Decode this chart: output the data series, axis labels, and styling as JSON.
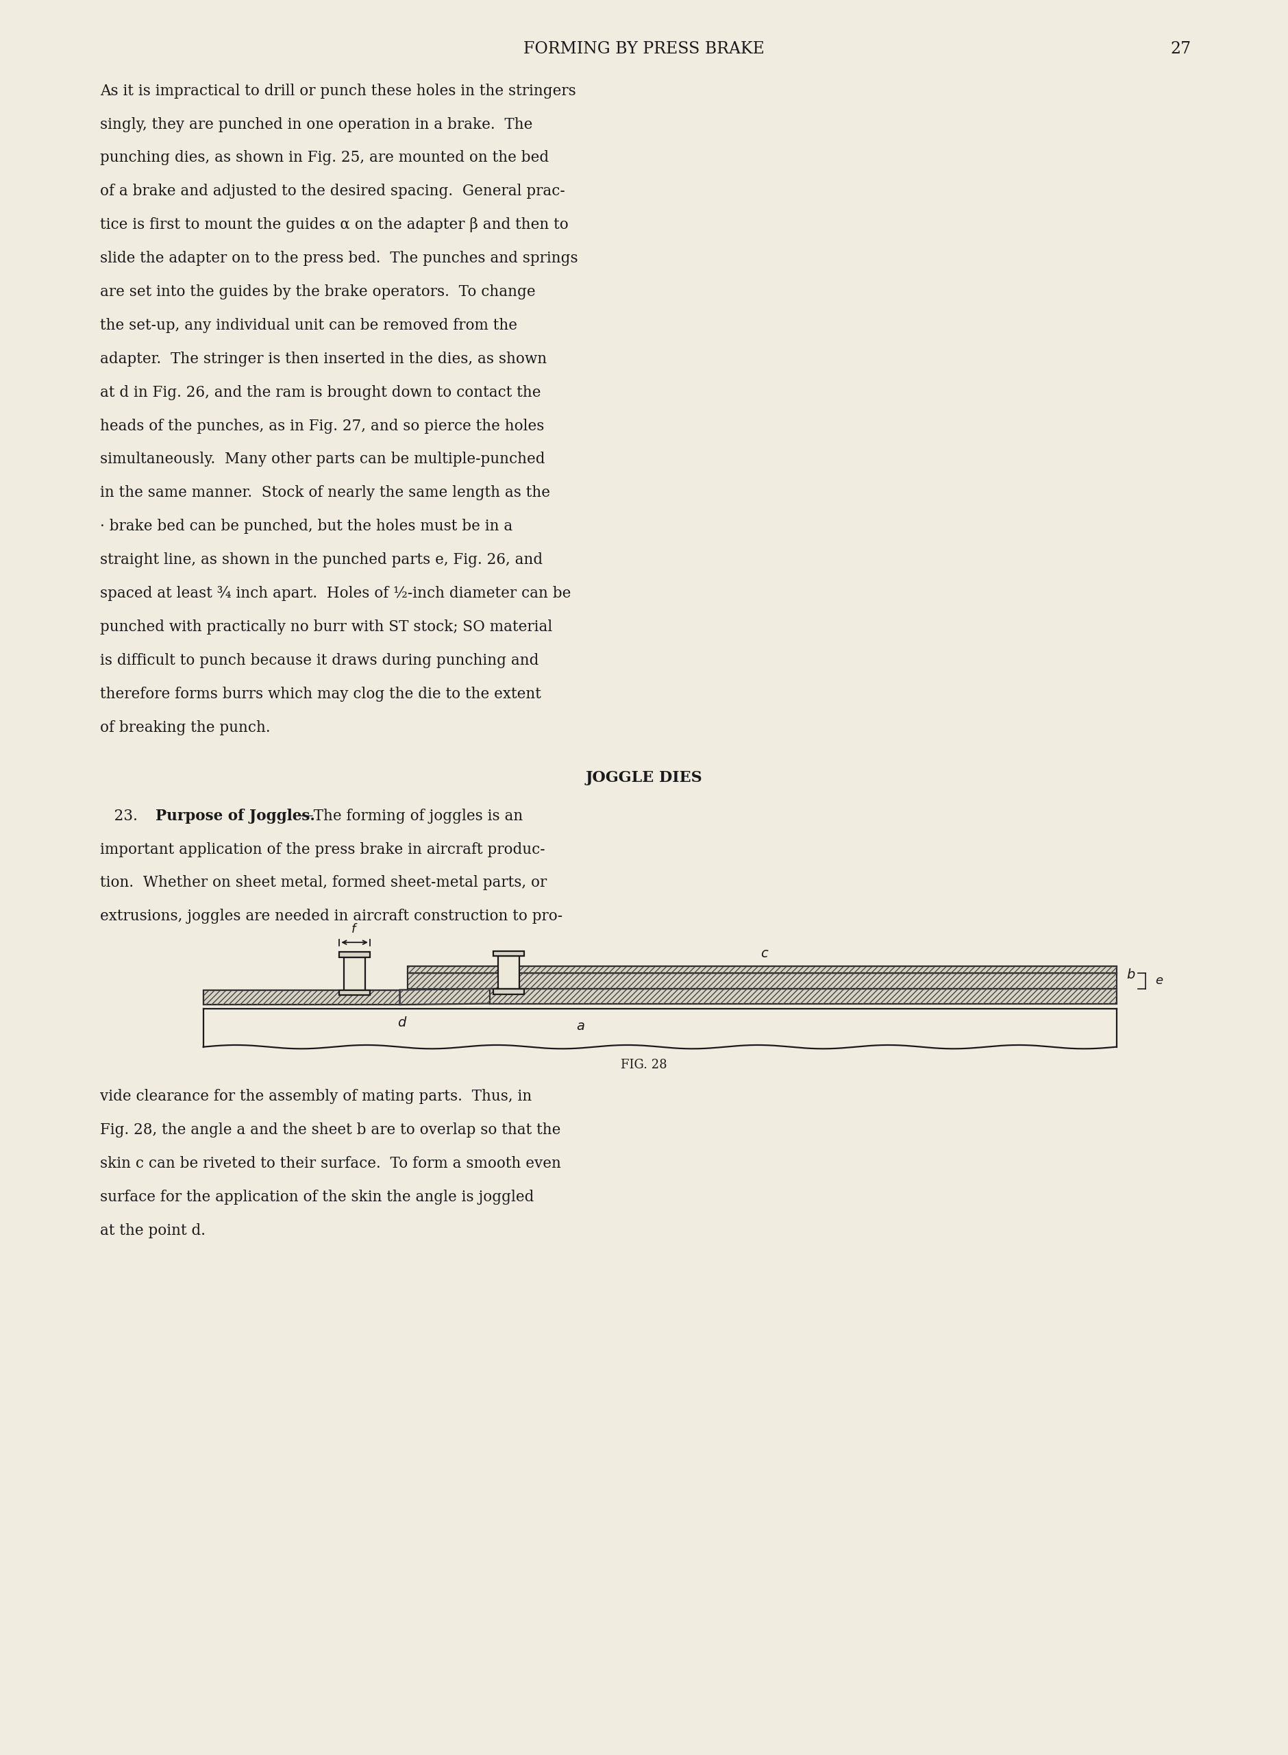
{
  "page_bg": "#f0ece0",
  "text_color": "#1a1a1a",
  "title": "FORMING BY PRESS BRAKE",
  "page_num": "27",
  "title_fontsize": 17,
  "body_fontsize": 15.5,
  "section_header": "JOGGLE DIES",
  "fig_caption": "FIG. 28",
  "para1_lines": [
    "As it is impractical to drill or punch these holes in the stringers",
    "singly, they are punched in one operation in a brake.  The",
    "punching dies, as shown in Fig. 25, are mounted on the bed",
    "of a brake and adjusted to the desired spacing.  General prac-",
    "tice is first to mount the guides α on the adapter β and then to",
    "slide the adapter on to the press bed.  The punches and springs",
    "are set into the guides by the brake operators.  To change",
    "the set-up, any individual unit can be removed from the",
    "adapter.  The stringer is then inserted in the dies, as shown",
    "at d in Fig. 26, and the ram is brought down to contact the",
    "heads of the punches, as in Fig. 27, and so pierce the holes",
    "simultaneously.  Many other parts can be multiple-punched",
    "in the same manner.  Stock of nearly the same length as the",
    "· brake bed can be punched, but the holes must be in a",
    "straight line, as shown in the punched parts e, Fig. 26, and",
    "spaced at least ¾ inch apart.  Holes of ½-inch diameter can be",
    "punched with practically no burr with ST stock; SO material",
    "is difficult to punch because it draws during punching and",
    "therefore forms burrs which may clog the die to the extent",
    "of breaking the punch."
  ],
  "para2_lines": [
    "important application of the press brake in aircraft produc-",
    "tion.  Whether on sheet metal, formed sheet-metal parts, or",
    "extrusions, joggles are needed in aircraft construction to pro-"
  ],
  "post_fig_lines": [
    "vide clearance for the assembly of mating parts.  Thus, in",
    "Fig. 28, the angle a and the sheet b are to overlap so that the",
    "skin c can be riveted to their surface.  To form a smooth even",
    "surface for the application of the skin the angle is joggled",
    "at the point d."
  ]
}
